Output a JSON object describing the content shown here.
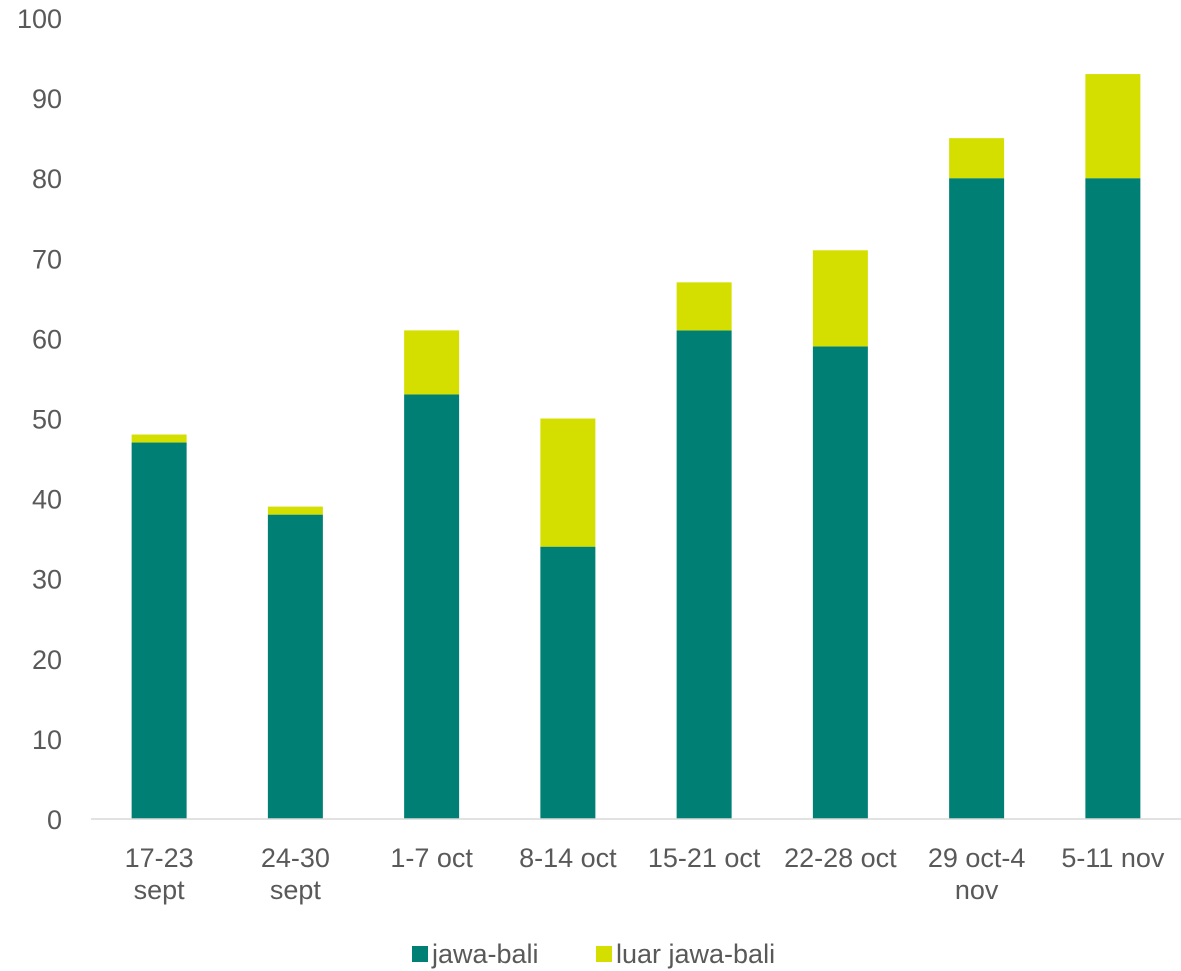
{
  "chart_data": {
    "type": "bar",
    "stacked": true,
    "categories": [
      [
        "17-23",
        "sept"
      ],
      [
        "24-30",
        "sept"
      ],
      [
        "1-7 oct"
      ],
      [
        "8-14 oct"
      ],
      [
        "15-21  oct"
      ],
      [
        "22-28 oct"
      ],
      [
        "29 oct-4",
        "nov"
      ],
      [
        "5-11 nov"
      ]
    ],
    "series": [
      {
        "name": "jawa-bali",
        "color": "#008075",
        "values": [
          47,
          38,
          53,
          34,
          61,
          59,
          80,
          80
        ]
      },
      {
        "name": "luar jawa-bali",
        "color": "#d4df00",
        "values": [
          1,
          1,
          8,
          16,
          6,
          12,
          5,
          13
        ]
      }
    ],
    "title": "",
    "xlabel": "",
    "ylabel": "",
    "ylim": [
      0,
      100
    ],
    "yticks": [
      0,
      10,
      20,
      30,
      40,
      50,
      60,
      70,
      80,
      90,
      100
    ],
    "grid": false,
    "legend": "bottom"
  }
}
